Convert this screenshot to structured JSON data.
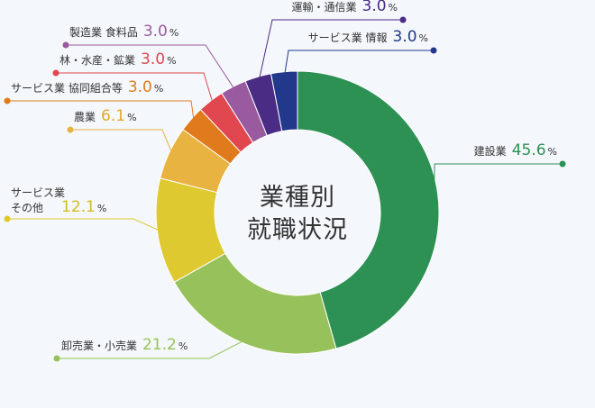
{
  "chart_data": {
    "type": "pie",
    "title": "業種別\n就職状況",
    "unit": "%",
    "slices": [
      {
        "name": "建設業",
        "value": 45.6,
        "color": "#2e9154"
      },
      {
        "name": "卸売業・小売業",
        "value": 21.2,
        "color": "#97c15a"
      },
      {
        "name": "サービス業\nその他",
        "value": 12.1,
        "color": "#dfc930"
      },
      {
        "name": "農業",
        "value": 6.1,
        "color": "#e8b341"
      },
      {
        "name": "サービス業 協同組合等",
        "value": 3.0,
        "color": "#e07b1d"
      },
      {
        "name": "林・水産・鉱業",
        "value": 3.0,
        "color": "#e0474e"
      },
      {
        "name": "製造業 食料品",
        "value": 3.0,
        "color": "#9a5aa0"
      },
      {
        "name": "運輸・通信業",
        "value": 3.0,
        "color": "#4a2c85"
      },
      {
        "name": "サービス業 情報",
        "value": 3.0,
        "color": "#22388a"
      }
    ],
    "value_label_colors": {
      "建設業": "#2e9154",
      "卸売業・小売業": "#97c15a",
      "サービス業\nその他": "#d4bb1e",
      "農業": "#e2a82e",
      "サービス業 協同組合等": "#e07b1d",
      "林・水産・鉱業": "#e0474e",
      "製造業 食料品": "#9a5aa0",
      "運輸・通信業": "#4a2c85",
      "サービス業 情報": "#22388a"
    }
  }
}
